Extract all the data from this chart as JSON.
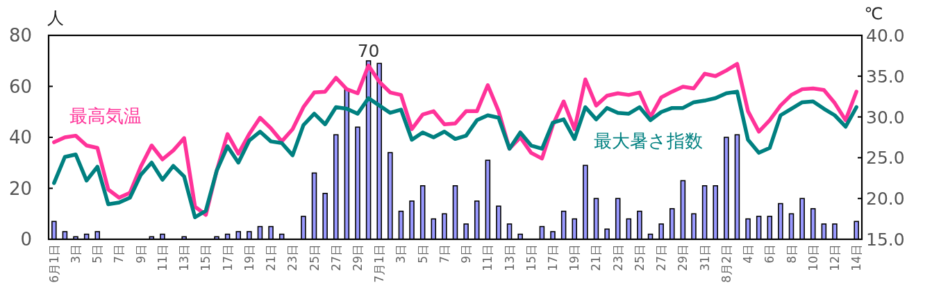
{
  "chart_data": {
    "type": "bar",
    "ylabel": "人",
    "y2label": "℃",
    "categories": [
      "6月1日",
      null,
      "3日",
      null,
      "5日",
      null,
      "7日",
      null,
      "9日",
      null,
      "11日",
      null,
      "13日",
      null,
      "15日",
      null,
      "17日",
      null,
      "19日",
      null,
      "21日",
      null,
      "23日",
      null,
      "25日",
      null,
      "27日",
      null,
      "29日",
      null,
      "7月1日",
      null,
      "3日",
      null,
      "5日",
      null,
      "7日",
      null,
      "9日",
      null,
      "11日",
      null,
      "13日",
      null,
      "15日",
      null,
      "17日",
      null,
      "19日",
      null,
      "21日",
      null,
      "23日",
      null,
      "25日",
      null,
      "27日",
      null,
      "29日",
      null,
      "31日",
      null,
      "8月2日",
      null,
      "4日",
      null,
      "6日",
      null,
      "8日",
      null,
      "10日",
      null,
      "12日",
      null,
      "14日"
    ],
    "ylim": [
      0,
      80
    ],
    "yticks": [
      0,
      20,
      40,
      60,
      80
    ],
    "y2lim": [
      15,
      40
    ],
    "y2ticks": [
      {
        "value": 15,
        "label": "15.0"
      },
      {
        "value": 20,
        "label": "20.0"
      },
      {
        "value": 25,
        "label": "25.0"
      },
      {
        "value": 30,
        "label": "30.0"
      },
      {
        "value": 35,
        "label": "35.0"
      },
      {
        "value": 40,
        "label": "40.0"
      }
    ],
    "series": [
      {
        "color": "#9999ff",
        "values": [
          7,
          3,
          1,
          2,
          3,
          0,
          0,
          0,
          0,
          1,
          2,
          0,
          1,
          0,
          0,
          1,
          2,
          3,
          3,
          5,
          5,
          2,
          0,
          9,
          26,
          18,
          41,
          59,
          44,
          70,
          69,
          34,
          11,
          15,
          21,
          8,
          10,
          21,
          6,
          15,
          31,
          13,
          6,
          2,
          0,
          5,
          3,
          11,
          8,
          29,
          16,
          4,
          16,
          8,
          11,
          2,
          6,
          12,
          23,
          10,
          21,
          21,
          40,
          41,
          8,
          9,
          9,
          14,
          10,
          16,
          12,
          6,
          6,
          0,
          7
        ],
        "value_labels": [
          null,
          null,
          null,
          null,
          null,
          null,
          null,
          null,
          null,
          null,
          null,
          null,
          null,
          null,
          null,
          null,
          null,
          null,
          null,
          null,
          null,
          null,
          null,
          null,
          null,
          null,
          null,
          null,
          null,
          "70",
          null,
          null,
          null,
          null,
          null,
          null,
          null,
          null,
          null,
          null,
          null,
          null,
          null,
          null,
          null,
          null,
          null,
          null,
          null,
          null,
          null,
          null,
          null,
          null,
          null,
          null,
          null,
          null,
          null,
          null,
          null,
          null,
          null,
          null,
          null,
          null,
          null,
          null,
          null,
          null,
          null,
          null,
          null,
          null,
          null
        ]
      },
      {
        "type": "line",
        "name": "最高気温",
        "color": "#ff3399",
        "axis": "y2",
        "values": [
          26.9,
          27.5,
          27.7,
          26.5,
          26.2,
          21.1,
          20.1,
          20.7,
          23.9,
          26.5,
          24.8,
          25.9,
          27.4,
          19.0,
          18.0,
          23.4,
          27.9,
          25.5,
          27.9,
          29.9,
          28.6,
          27.0,
          28.5,
          31.2,
          33.0,
          33.1,
          34.8,
          33.4,
          32.9,
          36.3,
          34.3,
          33.0,
          32.7,
          28.5,
          30.3,
          30.7,
          29.1,
          29.2,
          30.7,
          30.7,
          33.9,
          30.7,
          26.1,
          27.5,
          25.6,
          24.9,
          29.0,
          31.9,
          28.5,
          34.6,
          31.4,
          32.6,
          32.9,
          32.7,
          33.0,
          30.0,
          32.4,
          33.1,
          33.7,
          33.5,
          35.3,
          35.0,
          35.7,
          36.5,
          30.7,
          28.2,
          29.6,
          31.4,
          32.7,
          33.4,
          33.5,
          33.3,
          31.7,
          29.6,
          33.1
        ]
      },
      {
        "type": "line",
        "name": "最大暑さ指数",
        "color": "#008080",
        "axis": "y2",
        "values": [
          21.9,
          25.1,
          25.4,
          22.2,
          23.9,
          19.3,
          19.5,
          20.1,
          22.9,
          24.4,
          22.3,
          24.0,
          22.7,
          17.7,
          18.5,
          23.4,
          26.4,
          24.4,
          27.1,
          28.2,
          27.0,
          26.8,
          25.3,
          29.0,
          30.4,
          29.1,
          31.2,
          31.0,
          30.4,
          32.3,
          31.4,
          30.5,
          30.9,
          27.2,
          28.1,
          27.5,
          28.2,
          27.3,
          27.7,
          29.6,
          30.2,
          29.9,
          26.1,
          28.1,
          26.5,
          26.1,
          29.3,
          29.7,
          27.3,
          31.2,
          29.7,
          31.1,
          30.5,
          30.4,
          31.2,
          29.6,
          30.6,
          31.1,
          31.1,
          31.8,
          32.0,
          32.3,
          32.9,
          33.1,
          27.2,
          25.6,
          26.2,
          30.2,
          31.0,
          31.8,
          31.9,
          31.0,
          30.2,
          28.8,
          31.2
        ]
      }
    ]
  }
}
